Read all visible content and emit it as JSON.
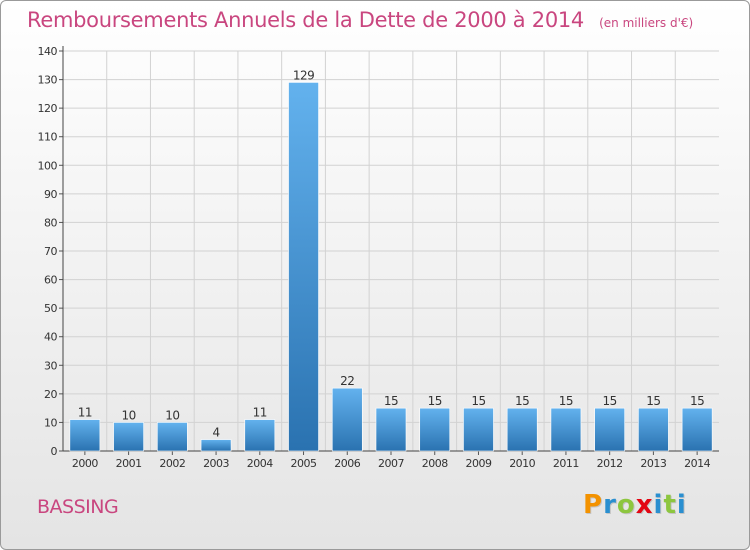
{
  "title": "Remboursements Annuels de la Dette de 2000 à 2014",
  "subtitle": "(en milliers d'€)",
  "commune": "BASSING",
  "logo": {
    "text": "Proxiti",
    "letter_colors": [
      "#f39200",
      "#2a8fd0",
      "#8dc63f",
      "#e30613",
      "#2a8fd0",
      "#8dc63f",
      "#2a8fd0"
    ]
  },
  "colors": {
    "bar_top": "#63b2ee",
    "bar_bottom": "#2a72b0",
    "text_accent": "#c9467f",
    "axis_text": "#333333"
  },
  "chart_data": {
    "type": "bar",
    "categories": [
      "2000",
      "2001",
      "2002",
      "2003",
      "2004",
      "2005",
      "2006",
      "2007",
      "2008",
      "2009",
      "2010",
      "2011",
      "2012",
      "2013",
      "2014"
    ],
    "values": [
      11,
      10,
      10,
      4,
      11,
      129,
      22,
      15,
      15,
      15,
      15,
      15,
      15,
      15,
      15
    ],
    "ylim": [
      0,
      140
    ],
    "yticks": [
      0,
      10,
      20,
      30,
      40,
      50,
      60,
      70,
      80,
      90,
      100,
      110,
      120,
      130,
      140
    ],
    "grid": true
  }
}
